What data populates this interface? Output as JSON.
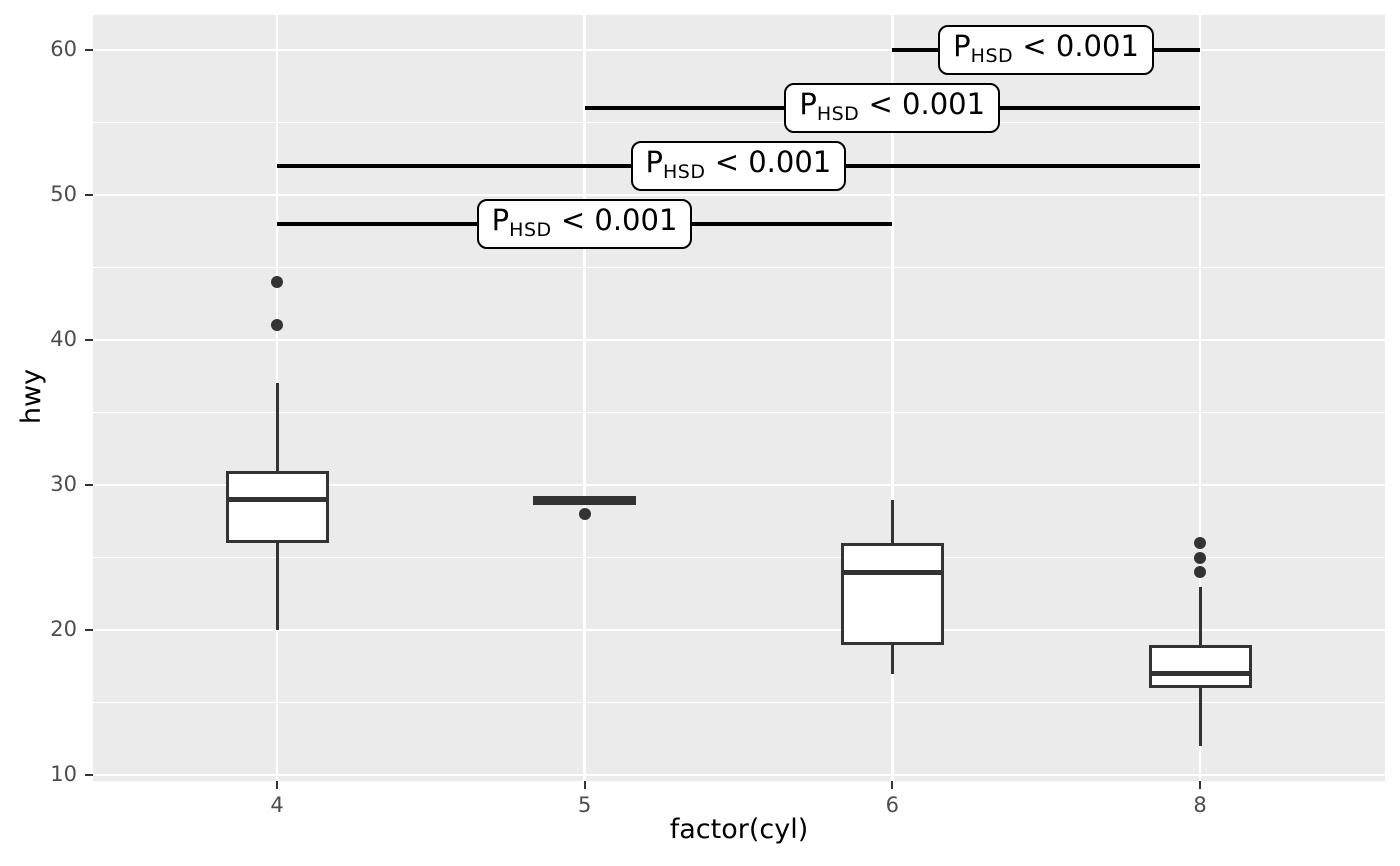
{
  "chart_data": {
    "type": "boxplot",
    "title": "",
    "xlabel": "factor(cyl)",
    "ylabel": "hwy",
    "x_categories": [
      "4",
      "5",
      "6",
      "8"
    ],
    "y_major_ticks": [
      10,
      20,
      30,
      40,
      50,
      60
    ],
    "y_major_tick_labels": [
      "10",
      "20",
      "30",
      "40",
      "50",
      "60"
    ],
    "y_minor_ticks": [
      15,
      25,
      35,
      45,
      55
    ],
    "ylim": [
      9.6,
      62.4
    ],
    "grid": "major-and-minor-horizontal, major-vertical",
    "legend": "none",
    "boxes": [
      {
        "category": "4",
        "whisker_low": 20,
        "q1": 26,
        "median": 29,
        "q3": 31,
        "whisker_high": 37,
        "outliers": [
          41,
          44
        ]
      },
      {
        "category": "5",
        "whisker_low": 28.65,
        "q1": 28.65,
        "median": 28.9,
        "q3": 29.25,
        "whisker_high": 29.25,
        "outliers": [
          28
        ]
      },
      {
        "category": "6",
        "whisker_low": 17,
        "q1": 19,
        "median": 24,
        "q3": 26,
        "whisker_high": 29,
        "outliers": []
      },
      {
        "category": "8",
        "whisker_low": 12,
        "q1": 16,
        "median": 17,
        "q3": 19,
        "whisker_high": 23,
        "outliers": [
          24,
          25,
          26
        ]
      }
    ],
    "annotations": [
      {
        "y": 60,
        "x_start": "6",
        "x_end": "8",
        "label_main": "P",
        "label_sub": "HSD",
        "label_rest": " < 0.001"
      },
      {
        "y": 56,
        "x_start": "5",
        "x_end": "8",
        "label_main": "P",
        "label_sub": "HSD",
        "label_rest": " < 0.001"
      },
      {
        "y": 52,
        "x_start": "4",
        "x_end": "8",
        "label_main": "P",
        "label_sub": "HSD",
        "label_rest": " < 0.001"
      },
      {
        "y": 48,
        "x_start": "4",
        "x_end": "6",
        "label_main": "P",
        "label_sub": "HSD",
        "label_rest": " < 0.001"
      }
    ],
    "colors": {
      "panel_background": "#EBEBEB",
      "gridline": "#FFFFFF",
      "box_stroke": "#333333",
      "box_fill": "#FFFFFF",
      "outlier": "#333333",
      "annotation": "#000000",
      "tick_label": "#4D4D4D",
      "axis_title": "#000000",
      "figure_background": "#FFFFFF"
    }
  }
}
